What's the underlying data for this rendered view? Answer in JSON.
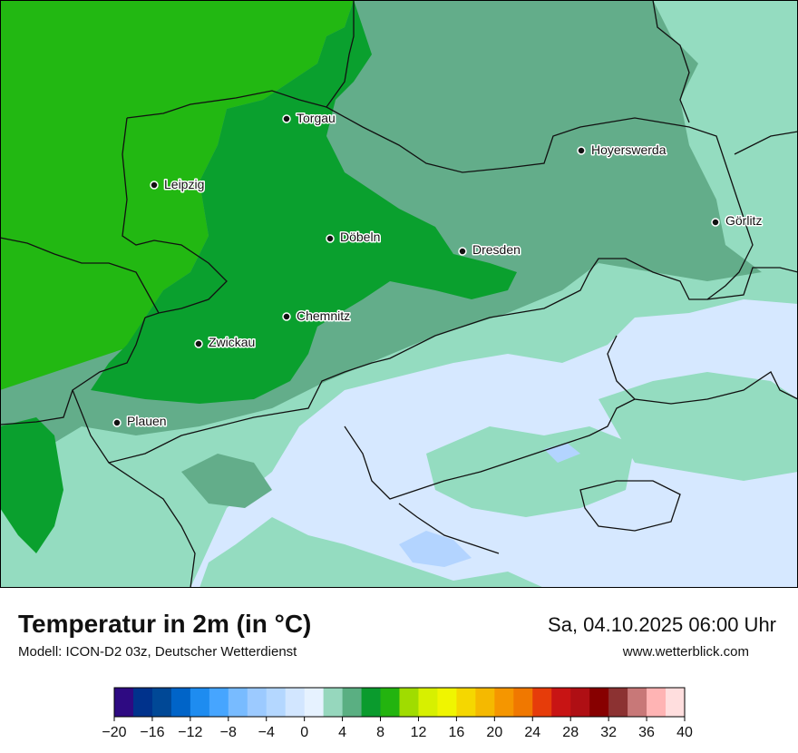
{
  "map": {
    "colors": {
      "green_bright": "#22b812",
      "green_mid": "#0aa02e",
      "green_dull": "#63ad8a",
      "mint": "#94dcc0",
      "pale_blue": "#d6e8ff",
      "light_blue": "#b3d4ff",
      "border": "#111111"
    },
    "cities": [
      {
        "name": "Torgau"
      },
      {
        "name": "Hoyerswerda"
      },
      {
        "name": "Leipzig"
      },
      {
        "name": "Görlitz"
      },
      {
        "name": "Döbeln"
      },
      {
        "name": "Dresden"
      },
      {
        "name": "Chemnitz"
      },
      {
        "name": "Zwickau"
      },
      {
        "name": "Plauen"
      }
    ]
  },
  "header": {
    "title": "Temperatur in 2m (in °C)",
    "model": "Modell: ICON-D2 03z, Deutscher Wetterdienst",
    "datetime": "Sa, 04.10.2025 06:00 Uhr",
    "website": "www.wetterblick.com"
  },
  "legend": {
    "ticks": [
      "−20",
      "−16",
      "−12",
      "−8",
      "−4",
      "0",
      "4",
      "8",
      "12",
      "16",
      "20",
      "24",
      "28",
      "32",
      "36",
      "40"
    ],
    "colors": [
      "#2e0a82",
      "#00328c",
      "#004896",
      "#0064c8",
      "#1e8cf0",
      "#46a5ff",
      "#78bbff",
      "#9ccaff",
      "#b4d7ff",
      "#d2e6ff",
      "#e6f2ff",
      "#96d7bd",
      "#5aaf82",
      "#0a9b2d",
      "#23b40f",
      "#a0dc00",
      "#d7f000",
      "#f0f500",
      "#f5d700",
      "#f5b900",
      "#f59600",
      "#f07800",
      "#e63c0a",
      "#c81414",
      "#af0f14",
      "#870000",
      "#8c3232",
      "#c87878",
      "#ffb4b4",
      "#ffdede"
    ]
  }
}
